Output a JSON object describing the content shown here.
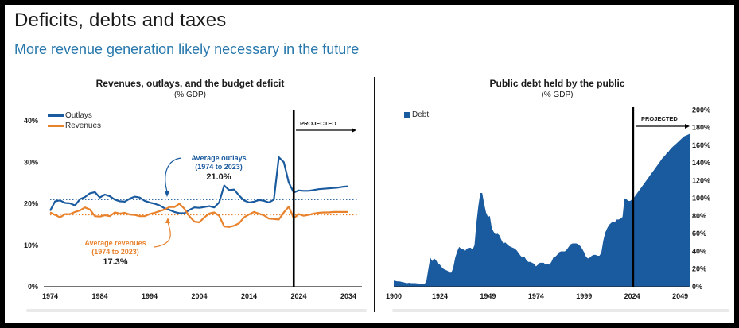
{
  "header": {
    "title": "Deficits, debts and taxes",
    "subtitle": "More revenue generation likely necessary in the future"
  },
  "colors": {
    "blue": "#1a5a9e",
    "orange": "#e8822d",
    "subtitle_blue": "#2878ad",
    "text": "#1b1b1b"
  },
  "chart_data": [
    {
      "type": "line",
      "title": "Revenues, outlays, and the budget deficit",
      "subtitle": "(% GDP)",
      "x_start": 1974,
      "x_step": 1,
      "xlim": [
        1974,
        2034
      ],
      "ylim": [
        0,
        40
      ],
      "grid": false,
      "legend_position": "top-left",
      "xticks": [
        "1974",
        "1984",
        "1994",
        "2004",
        "2014",
        "2024",
        "2034"
      ],
      "xtick_values": [
        1974,
        1984,
        1994,
        2004,
        2014,
        2024,
        2034
      ],
      "yticks": [
        "0%",
        "10%",
        "20%",
        "30%",
        "40%"
      ],
      "ytick_values": [
        0,
        10,
        20,
        30,
        40
      ],
      "series": [
        {
          "name": "Outlays",
          "color": "#1a5a9e",
          "values": [
            18.3,
            20.6,
            20.8,
            20.2,
            20.1,
            19.6,
            21.1,
            21.6,
            22.5,
            22.8,
            21.5,
            22.2,
            21.8,
            21.0,
            20.6,
            20.5,
            21.2,
            21.7,
            21.5,
            20.7,
            20.3,
            20.0,
            19.6,
            18.9,
            18.5,
            18.0,
            17.7,
            17.7,
            18.5,
            19.1,
            19.0,
            19.2,
            19.4,
            19.1,
            20.3,
            24.4,
            23.3,
            23.4,
            22.0,
            20.8,
            20.3,
            20.5,
            20.9,
            20.7,
            20.3,
            21.0,
            31.2,
            30.0,
            25.1,
            22.7,
            23.2,
            23.1,
            23.1,
            23.3,
            23.5,
            23.6,
            23.7,
            23.8,
            23.9,
            24.1,
            24.2
          ]
        },
        {
          "name": "Revenues",
          "color": "#e8822d",
          "values": [
            17.9,
            17.3,
            16.7,
            17.5,
            17.5,
            18.0,
            18.4,
            19.1,
            18.6,
            17.0,
            16.9,
            17.2,
            17.0,
            17.9,
            17.6,
            17.8,
            17.4,
            17.3,
            17.0,
            17.0,
            17.5,
            17.8,
            18.2,
            18.6,
            19.2,
            19.2,
            20.0,
            18.8,
            17.0,
            15.7,
            15.5,
            16.7,
            17.6,
            17.9,
            17.1,
            14.5,
            14.4,
            14.7,
            15.3,
            16.7,
            17.4,
            18.0,
            17.6,
            17.2,
            16.4,
            16.3,
            16.2,
            17.9,
            19.3,
            16.5,
            17.5,
            17.1,
            17.3,
            17.6,
            17.8,
            17.9,
            17.9,
            18.0,
            18.0,
            18.0,
            18.0
          ]
        }
      ],
      "average_lines": [
        {
          "label_line1": "Average outlays",
          "label_line2": "(1974 to 2023)",
          "value_label": "21.0%",
          "value": 21.0,
          "color": "#1a5a9e"
        },
        {
          "label_line1": "Average revenues",
          "label_line2": "(1974 to 2023)",
          "value_label": "17.3%",
          "value": 17.3,
          "color": "#e8822d"
        }
      ],
      "projection": {
        "label": "PROJECTED",
        "x": 2023
      }
    },
    {
      "type": "area",
      "title": "Public debt held by the public",
      "subtitle": "(% GDP)",
      "x_start": 1900,
      "x_step": 1,
      "xlim": [
        1900,
        2054
      ],
      "ylim": [
        0,
        200
      ],
      "grid": false,
      "axis_side": "right",
      "legend_position": "top-left",
      "xticks": [
        "1900",
        "1924",
        "1949",
        "1974",
        "1999",
        "2024",
        "2049"
      ],
      "xtick_values": [
        1900,
        1924,
        1949,
        1974,
        1999,
        2024,
        2049
      ],
      "yticks": [
        "0%",
        "20%",
        "40%",
        "60%",
        "80%",
        "100%",
        "120%",
        "140%",
        "160%",
        "180%",
        "200%"
      ],
      "ytick_values": [
        0,
        20,
        40,
        60,
        80,
        100,
        120,
        140,
        160,
        180,
        200
      ],
      "series": [
        {
          "name": "Debt",
          "color": "#1a5a9e",
          "values": [
            7,
            6.5,
            6,
            6,
            5.5,
            5,
            4.5,
            4,
            4.5,
            4,
            4,
            4,
            3.8,
            3.5,
            3.3,
            3.2,
            2.7,
            7,
            20,
            33,
            29,
            32,
            30,
            26,
            25,
            22,
            20,
            19,
            18,
            16,
            16,
            22,
            33,
            40,
            45,
            43,
            43,
            40,
            43,
            44,
            44,
            42,
            47,
            72,
            91,
            106,
            106,
            94,
            84,
            79,
            80,
            66,
            62,
            59,
            60,
            58,
            53,
            49,
            50,
            48,
            46,
            45,
            44,
            43,
            41,
            38,
            35,
            33,
            34,
            30,
            28,
            28,
            27,
            26,
            23,
            25,
            27,
            27,
            27,
            25,
            26,
            25,
            28,
            33,
            34,
            36,
            39,
            40,
            40,
            40,
            42,
            45,
            48,
            49,
            49,
            49,
            48,
            46,
            43,
            39,
            34,
            32,
            33,
            35,
            36,
            36,
            35,
            35,
            39,
            52,
            61,
            66,
            70,
            72,
            74,
            73,
            76,
            76,
            77,
            79,
            100,
            99,
            97,
            97,
            99,
            101,
            104,
            107,
            110,
            113,
            116,
            119,
            122,
            125,
            128,
            131,
            134,
            137,
            140,
            143,
            146,
            148,
            151,
            153,
            156,
            158,
            160,
            162,
            164,
            166,
            168,
            170,
            171,
            172,
            173
          ]
        }
      ],
      "projection": {
        "label": "PROJECTED",
        "x": 2024.5
      }
    }
  ]
}
